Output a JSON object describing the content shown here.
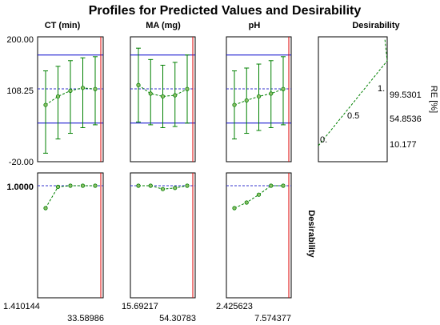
{
  "figure": {
    "title": "Profiles for Predicted Values and Desirability",
    "column_headers": [
      "CT (min)",
      "MA (mg)",
      "pH",
      "Desirability"
    ],
    "response_label": "RE [%]",
    "desirability_label": "Desirability"
  },
  "colors": {
    "frame": "#000000",
    "blue_limits": "#0000cc",
    "profile": "#008000",
    "marker": "#8fbf6a",
    "current_value": "#dd0000",
    "target": "#3333cc"
  },
  "chart_data": [
    {
      "type": "line",
      "panel": "response-profiles",
      "ylim": [
        -20,
        200
      ],
      "y_ticks": [
        "200.00",
        "108.25",
        "-20.00"
      ],
      "y_reference": {
        "center": 108.25,
        "upper": 168.0,
        "lower": 48.0
      },
      "series": [
        {
          "factor": "CT (min)",
          "x_labels": [
            "1.410144",
            "33.58986"
          ],
          "x": [
            1.410144,
            9.45507,
            17.5,
            25.5449,
            33.58986
          ],
          "mean": [
            80,
            95,
            105,
            110,
            108
          ],
          "low": [
            -5,
            20,
            30,
            40,
            45
          ],
          "high": [
            140,
            148,
            158,
            163,
            165
          ]
        },
        {
          "factor": "MA (mg)",
          "x_labels": [
            "15.69217",
            "54.30783"
          ],
          "x": [
            15.69217,
            25.346,
            35.0,
            44.654,
            54.30783
          ],
          "mean": [
            115,
            100,
            95,
            97,
            108
          ],
          "low": [
            50,
            45,
            40,
            42,
            48
          ],
          "high": [
            180,
            160,
            150,
            155,
            168
          ]
        },
        {
          "factor": "pH",
          "x_labels": [
            "2.425623",
            "7.574377"
          ],
          "x": [
            2.425623,
            3.7128,
            5.0,
            6.2872,
            7.574377
          ],
          "mean": [
            80,
            88,
            95,
            100,
            108
          ],
          "low": [
            20,
            30,
            35,
            40,
            45
          ],
          "high": [
            140,
            145,
            152,
            158,
            165
          ]
        }
      ]
    },
    {
      "type": "line",
      "panel": "desirability-function",
      "x_labels": [
        "0.",
        "0.5",
        "1."
      ],
      "x": [
        0,
        0.5,
        1.0
      ],
      "right_labels": [
        "99.5301",
        "54.8536",
        "10.177"
      ],
      "y": [
        10.177,
        54.8536,
        99.5301
      ]
    },
    {
      "type": "scatter",
      "panel": "desirability-profiles",
      "y_tick": "1.0000",
      "ylim": [
        0,
        1.0
      ],
      "series": [
        {
          "factor": "CT (min)",
          "values": [
            0.8,
            0.99,
            1.0,
            1.0,
            1.0
          ]
        },
        {
          "factor": "MA (mg)",
          "values": [
            1.0,
            1.0,
            0.97,
            0.98,
            1.0
          ]
        },
        {
          "factor": "pH",
          "values": [
            0.8,
            0.85,
            0.92,
            1.0,
            1.0
          ]
        }
      ]
    }
  ]
}
